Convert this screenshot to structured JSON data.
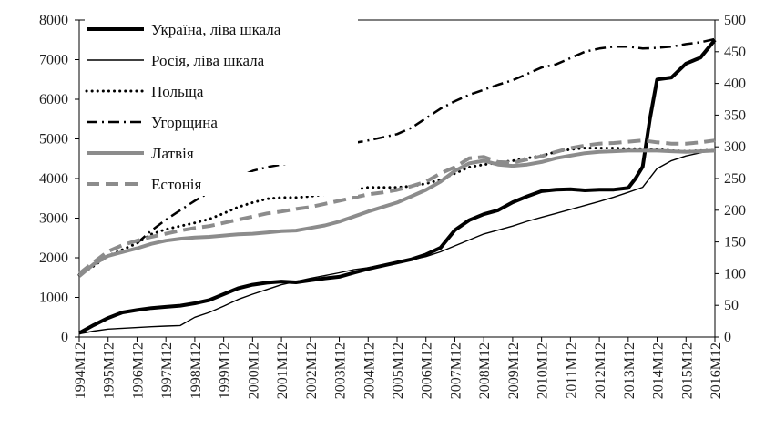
{
  "chart_data": {
    "type": "line",
    "dual_axis": true,
    "title": "",
    "xlabel": "",
    "ylabel_left": "",
    "ylabel_right": "",
    "y_left_range": [
      0,
      8000
    ],
    "y_left_ticks": [
      0,
      1000,
      2000,
      3000,
      4000,
      5000,
      6000,
      7000,
      8000
    ],
    "y_right_range": [
      0,
      500
    ],
    "y_right_ticks": [
      0,
      50,
      100,
      150,
      200,
      250,
      300,
      350,
      400,
      450,
      500
    ],
    "grid": false,
    "legend_position": "top-left",
    "x_tick_labels": [
      "1994M12",
      "1995M12",
      "1996M12",
      "1997M12",
      "1998M12",
      "1999M12",
      "2000M12",
      "2001M12",
      "2002M12",
      "2003M12",
      "2004M12",
      "2005M12",
      "2006M12",
      "2007M12",
      "2008M12",
      "2009M12",
      "2010M12",
      "2011M12",
      "2012M12",
      "2013M12",
      "2014M12",
      "2015M12",
      "2016M12"
    ],
    "series": [
      {
        "name": "Україна, ліва шкала",
        "axis": "left",
        "style": "thick-solid",
        "color": "#000000",
        "points": [
          [
            "1994M12",
            100
          ],
          [
            "1995M06",
            300
          ],
          [
            "1995M12",
            480
          ],
          [
            "1996M06",
            620
          ],
          [
            "1996M12",
            680
          ],
          [
            "1997M06",
            730
          ],
          [
            "1997M12",
            760
          ],
          [
            "1998M06",
            790
          ],
          [
            "1998M12",
            850
          ],
          [
            "1999M06",
            930
          ],
          [
            "1999M12",
            1080
          ],
          [
            "2000M06",
            1230
          ],
          [
            "2000M12",
            1320
          ],
          [
            "2001M06",
            1370
          ],
          [
            "2001M12",
            1400
          ],
          [
            "2002M06",
            1380
          ],
          [
            "2002M12",
            1430
          ],
          [
            "2003M06",
            1480
          ],
          [
            "2003M12",
            1520
          ],
          [
            "2004M06",
            1620
          ],
          [
            "2004M12",
            1720
          ],
          [
            "2005M06",
            1800
          ],
          [
            "2005M12",
            1880
          ],
          [
            "2006M06",
            1960
          ],
          [
            "2006M12",
            2080
          ],
          [
            "2007M06",
            2250
          ],
          [
            "2007M12",
            2700
          ],
          [
            "2008M06",
            2950
          ],
          [
            "2008M12",
            3100
          ],
          [
            "2009M06",
            3200
          ],
          [
            "2009M12",
            3400
          ],
          [
            "2010M06",
            3550
          ],
          [
            "2010M12",
            3680
          ],
          [
            "2011M06",
            3720
          ],
          [
            "2011M12",
            3730
          ],
          [
            "2012M06",
            3700
          ],
          [
            "2012M12",
            3720
          ],
          [
            "2013M06",
            3720
          ],
          [
            "2013M12",
            3760
          ],
          [
            "2014M03",
            4000
          ],
          [
            "2014M06",
            4300
          ],
          [
            "2014M09",
            5500
          ],
          [
            "2014M12",
            6500
          ],
          [
            "2015M06",
            6550
          ],
          [
            "2015M12",
            6900
          ],
          [
            "2016M06",
            7050
          ],
          [
            "2016M12",
            7500
          ]
        ]
      },
      {
        "name": "Росія, ліва шкала",
        "axis": "left",
        "style": "thin-solid",
        "color": "#000000",
        "points": [
          [
            "1994M12",
            80
          ],
          [
            "1995M06",
            150
          ],
          [
            "1995M12",
            200
          ],
          [
            "1996M06",
            220
          ],
          [
            "1996M12",
            240
          ],
          [
            "1997M06",
            260
          ],
          [
            "1997M12",
            275
          ],
          [
            "1998M06",
            290
          ],
          [
            "1998M12",
            500
          ],
          [
            "1999M06",
            620
          ],
          [
            "1999M12",
            780
          ],
          [
            "2000M06",
            950
          ],
          [
            "2000M12",
            1080
          ],
          [
            "2001M06",
            1200
          ],
          [
            "2001M12",
            1320
          ],
          [
            "2002M06",
            1400
          ],
          [
            "2002M12",
            1480
          ],
          [
            "2003M06",
            1550
          ],
          [
            "2003M12",
            1620
          ],
          [
            "2004M06",
            1700
          ],
          [
            "2004M12",
            1750
          ],
          [
            "2005M06",
            1820
          ],
          [
            "2005M12",
            1870
          ],
          [
            "2006M06",
            1950
          ],
          [
            "2006M12",
            2030
          ],
          [
            "2007M06",
            2150
          ],
          [
            "2007M12",
            2300
          ],
          [
            "2008M06",
            2450
          ],
          [
            "2008M12",
            2600
          ],
          [
            "2009M06",
            2700
          ],
          [
            "2009M12",
            2800
          ],
          [
            "2010M06",
            2920
          ],
          [
            "2010M12",
            3020
          ],
          [
            "2011M06",
            3120
          ],
          [
            "2011M12",
            3220
          ],
          [
            "2012M06",
            3320
          ],
          [
            "2012M12",
            3420
          ],
          [
            "2013M06",
            3530
          ],
          [
            "2013M12",
            3650
          ],
          [
            "2014M06",
            3780
          ],
          [
            "2014M12",
            4250
          ],
          [
            "2015M06",
            4450
          ],
          [
            "2015M12",
            4570
          ],
          [
            "2016M06",
            4650
          ],
          [
            "2016M12",
            4720
          ]
        ]
      },
      {
        "name": "Польща",
        "axis": "right",
        "style": "dotted",
        "color": "#000000",
        "points": [
          [
            "1994M12",
            98
          ],
          [
            "1995M06",
            112
          ],
          [
            "1995M12",
            128
          ],
          [
            "1996M06",
            138
          ],
          [
            "1996M12",
            148
          ],
          [
            "1997M06",
            162
          ],
          [
            "1997M12",
            170
          ],
          [
            "1998M06",
            175
          ],
          [
            "1998M12",
            180
          ],
          [
            "1999M06",
            186
          ],
          [
            "1999M12",
            195
          ],
          [
            "2000M06",
            205
          ],
          [
            "2000M12",
            212
          ],
          [
            "2001M06",
            218
          ],
          [
            "2001M12",
            220
          ],
          [
            "2002M06",
            220
          ],
          [
            "2002M12",
            222
          ],
          [
            "2003M06",
            225
          ],
          [
            "2003M12",
            228
          ],
          [
            "2004M06",
            232
          ],
          [
            "2004M12",
            236
          ],
          [
            "2005M06",
            236
          ],
          [
            "2005M12",
            236
          ],
          [
            "2006M06",
            238
          ],
          [
            "2006M12",
            242
          ],
          [
            "2007M06",
            248
          ],
          [
            "2007M12",
            258
          ],
          [
            "2008M06",
            268
          ],
          [
            "2008M12",
            272
          ],
          [
            "2009M06",
            275
          ],
          [
            "2009M12",
            278
          ],
          [
            "2010M06",
            282
          ],
          [
            "2010M12",
            286
          ],
          [
            "2011M06",
            292
          ],
          [
            "2011M12",
            296
          ],
          [
            "2012M06",
            298
          ],
          [
            "2012M12",
            298
          ],
          [
            "2013M06",
            298
          ],
          [
            "2013M12",
            297
          ],
          [
            "2014M06",
            297
          ],
          [
            "2014M12",
            296
          ],
          [
            "2015M06",
            294
          ],
          [
            "2015M12",
            293
          ],
          [
            "2016M06",
            294
          ],
          [
            "2016M12",
            295
          ]
        ]
      },
      {
        "name": "Угорщина",
        "axis": "right",
        "style": "dash-dot",
        "color": "#000000",
        "points": [
          [
            "1996M12",
            148
          ],
          [
            "1997M06",
            168
          ],
          [
            "1997M12",
            185
          ],
          [
            "1998M06",
            200
          ],
          [
            "1998M12",
            215
          ],
          [
            "1999M06",
            228
          ],
          [
            "1999M12",
            240
          ],
          [
            "2000M06",
            252
          ],
          [
            "2000M12",
            262
          ],
          [
            "2001M06",
            268
          ],
          [
            "2001M12",
            272
          ],
          [
            "2002M06",
            276
          ],
          [
            "2002M12",
            282
          ],
          [
            "2003M06",
            290
          ],
          [
            "2003M12",
            298
          ],
          [
            "2004M06",
            306
          ],
          [
            "2004M12",
            310
          ],
          [
            "2005M06",
            315
          ],
          [
            "2005M12",
            320
          ],
          [
            "2006M06",
            330
          ],
          [
            "2006M12",
            345
          ],
          [
            "2007M06",
            360
          ],
          [
            "2007M12",
            372
          ],
          [
            "2008M06",
            382
          ],
          [
            "2008M12",
            390
          ],
          [
            "2009M06",
            398
          ],
          [
            "2009M12",
            405
          ],
          [
            "2010M06",
            415
          ],
          [
            "2010M12",
            425
          ],
          [
            "2011M06",
            430
          ],
          [
            "2011M12",
            440
          ],
          [
            "2012M06",
            450
          ],
          [
            "2012M12",
            455
          ],
          [
            "2013M06",
            458
          ],
          [
            "2013M12",
            458
          ],
          [
            "2014M06",
            455
          ],
          [
            "2014M12",
            456
          ],
          [
            "2015M06",
            458
          ],
          [
            "2015M12",
            462
          ],
          [
            "2016M06",
            465
          ],
          [
            "2016M12",
            470
          ]
        ]
      },
      {
        "name": "Латвія",
        "axis": "right",
        "style": "thick-gray-solid",
        "color": "#8c8c8c",
        "points": [
          [
            "1994M12",
            96
          ],
          [
            "1995M06",
            115
          ],
          [
            "1995M12",
            128
          ],
          [
            "1996M06",
            134
          ],
          [
            "1996M12",
            140
          ],
          [
            "1997M06",
            147
          ],
          [
            "1997M12",
            152
          ],
          [
            "1998M06",
            155
          ],
          [
            "1998M12",
            157
          ],
          [
            "1999M06",
            158
          ],
          [
            "1999M12",
            160
          ],
          [
            "2000M06",
            162
          ],
          [
            "2000M12",
            163
          ],
          [
            "2001M06",
            165
          ],
          [
            "2001M12",
            167
          ],
          [
            "2002M06",
            168
          ],
          [
            "2002M12",
            172
          ],
          [
            "2003M06",
            176
          ],
          [
            "2003M12",
            182
          ],
          [
            "2004M06",
            190
          ],
          [
            "2004M12",
            198
          ],
          [
            "2005M06",
            205
          ],
          [
            "2005M12",
            212
          ],
          [
            "2006M06",
            222
          ],
          [
            "2006M12",
            232
          ],
          [
            "2007M06",
            245
          ],
          [
            "2007M12",
            262
          ],
          [
            "2008M06",
            274
          ],
          [
            "2008M12",
            278
          ],
          [
            "2009M06",
            272
          ],
          [
            "2009M12",
            270
          ],
          [
            "2010M06",
            272
          ],
          [
            "2010M12",
            276
          ],
          [
            "2011M06",
            282
          ],
          [
            "2011M12",
            286
          ],
          [
            "2012M06",
            290
          ],
          [
            "2012M12",
            292
          ],
          [
            "2013M06",
            293
          ],
          [
            "2013M12",
            294
          ],
          [
            "2014M06",
            294
          ],
          [
            "2014M12",
            294
          ],
          [
            "2015M06",
            293
          ],
          [
            "2015M12",
            292
          ],
          [
            "2016M06",
            293
          ],
          [
            "2016M12",
            294
          ]
        ]
      },
      {
        "name": "Естонія",
        "axis": "right",
        "style": "gray-dashed",
        "color": "#8c8c8c",
        "points": [
          [
            "1994M12",
            100
          ],
          [
            "1995M06",
            118
          ],
          [
            "1995M12",
            135
          ],
          [
            "1996M06",
            145
          ],
          [
            "1996M12",
            152
          ],
          [
            "1997M06",
            158
          ],
          [
            "1997M12",
            163
          ],
          [
            "1998M06",
            168
          ],
          [
            "1998M12",
            172
          ],
          [
            "1999M06",
            175
          ],
          [
            "1999M12",
            180
          ],
          [
            "2000M06",
            185
          ],
          [
            "2000M12",
            190
          ],
          [
            "2001M06",
            195
          ],
          [
            "2001M12",
            198
          ],
          [
            "2002M06",
            202
          ],
          [
            "2002M12",
            205
          ],
          [
            "2003M06",
            210
          ],
          [
            "2003M12",
            215
          ],
          [
            "2004M06",
            220
          ],
          [
            "2004M12",
            225
          ],
          [
            "2005M06",
            228
          ],
          [
            "2005M12",
            232
          ],
          [
            "2006M06",
            238
          ],
          [
            "2006M12",
            245
          ],
          [
            "2007M06",
            258
          ],
          [
            "2007M12",
            268
          ],
          [
            "2008M06",
            282
          ],
          [
            "2008M12",
            284
          ],
          [
            "2009M06",
            276
          ],
          [
            "2009M12",
            275
          ],
          [
            "2010M06",
            280
          ],
          [
            "2010M12",
            285
          ],
          [
            "2011M06",
            292
          ],
          [
            "2011M12",
            298
          ],
          [
            "2012M06",
            302
          ],
          [
            "2012M12",
            305
          ],
          [
            "2013M06",
            306
          ],
          [
            "2013M12",
            308
          ],
          [
            "2014M06",
            310
          ],
          [
            "2014M12",
            307
          ],
          [
            "2015M06",
            305
          ],
          [
            "2015M12",
            305
          ],
          [
            "2016M06",
            307
          ],
          [
            "2016M12",
            310
          ]
        ]
      }
    ]
  }
}
